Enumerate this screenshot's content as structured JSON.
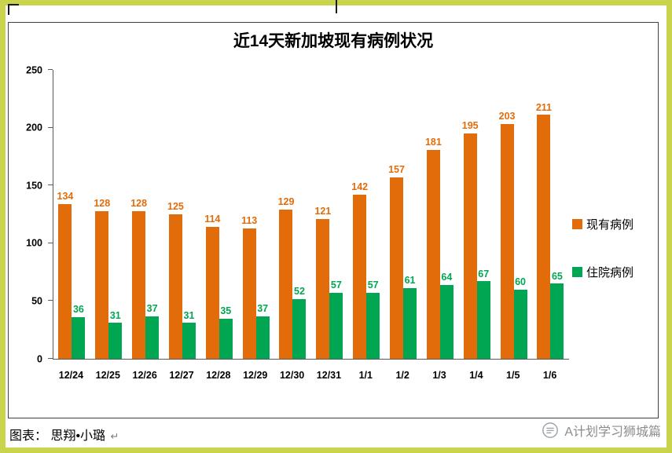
{
  "chart_data": {
    "type": "bar",
    "title": "近14天新加坡现有病例状况",
    "categories": [
      "12/24",
      "12/25",
      "12/26",
      "12/27",
      "12/28",
      "12/29",
      "12/30",
      "12/31",
      "1/1",
      "1/2",
      "1/3",
      "1/4",
      "1/5",
      "1/6"
    ],
    "series": [
      {
        "name": "现有病例",
        "color": "#E36C0A",
        "values": [
          134,
          128,
          128,
          125,
          114,
          113,
          129,
          121,
          142,
          157,
          181,
          195,
          203,
          211
        ]
      },
      {
        "name": "住院病例",
        "color": "#00A651",
        "values": [
          36,
          31,
          37,
          31,
          35,
          37,
          52,
          57,
          57,
          61,
          64,
          67,
          60,
          65
        ]
      }
    ],
    "ylim": [
      0,
      250
    ],
    "yticks": [
      0,
      50,
      100,
      150,
      200,
      250
    ],
    "grid": false,
    "legend_position": "right"
  },
  "footer": {
    "caption": "图表： 思翔•小璐",
    "return_mark": "↵",
    "brand": "A计划学习狮城篇"
  },
  "colors": {
    "frame": "#C9D44C",
    "existing_cases": "#E36C0A",
    "hospitalized_cases": "#00A651",
    "brand_text": "#8C8C8C"
  }
}
